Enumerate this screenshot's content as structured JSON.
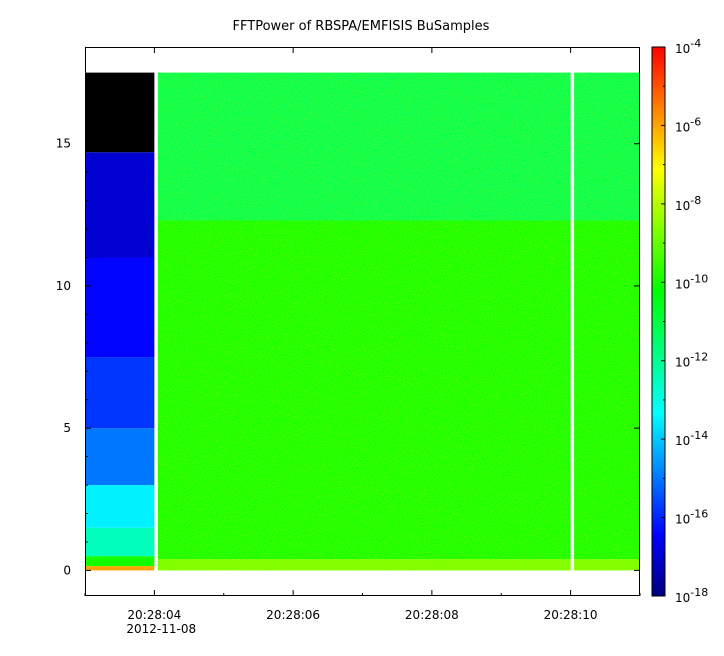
{
  "chart_data": {
    "type": "heatmap",
    "title": "FFTPower of RBSPA/EMFISIS  BuSamples",
    "xlabel": "",
    "ylabel": "",
    "x_ticks": [
      {
        "value": 4,
        "label": "20:28:04"
      },
      {
        "value": 6,
        "label": "20:28:06"
      },
      {
        "value": 8,
        "label": "20:28:08"
      },
      {
        "value": 10,
        "label": "20:28:10"
      }
    ],
    "x_first_tick_sublabel": "2012-11-08",
    "x_minor_ticks": [
      3,
      5,
      7,
      9,
      11
    ],
    "xlim": [
      3.0,
      11.0
    ],
    "y_ticks": [
      0,
      5,
      10,
      15
    ],
    "y_minor_ticks": [
      1,
      2,
      3,
      4,
      6,
      7,
      8,
      9,
      11,
      12,
      13,
      14,
      16,
      17
    ],
    "ylim": [
      -0.9,
      18.4
    ],
    "colorbar": {
      "scale": "log",
      "range": [
        1e-18,
        0.0001
      ],
      "tick_labels": [
        {
          "exp": -4,
          "base": "10",
          "sup": "-4"
        },
        {
          "exp": -6,
          "base": "10",
          "sup": "-6"
        },
        {
          "exp": -8,
          "base": "10",
          "sup": "-8"
        },
        {
          "exp": -10,
          "base": "10",
          "sup": "-10"
        },
        {
          "exp": -12,
          "base": "10",
          "sup": "-12"
        },
        {
          "exp": -14,
          "base": "10",
          "sup": "-14"
        },
        {
          "exp": -16,
          "base": "10",
          "sup": "-16"
        },
        {
          "exp": -18,
          "base": "10",
          "sup": "-18"
        }
      ],
      "colors": [
        "#00007f",
        "#0000ff",
        "#0080ff",
        "#00ffff",
        "#00ff80",
        "#00ff00",
        "#80ff00",
        "#ffff00",
        "#ff8000",
        "#ff0000"
      ]
    },
    "blocks": [
      {
        "x0": 3.0,
        "x1": 4.0,
        "bands": [
          {
            "y0": 0.0,
            "y1": 0.15,
            "log_power": -6.0
          },
          {
            "y0": 0.15,
            "y1": 0.5,
            "log_power": -10.0
          },
          {
            "y0": 0.5,
            "y1": 1.5,
            "log_power": -12.5
          },
          {
            "y0": 1.5,
            "y1": 3.0,
            "log_power": -13.5
          },
          {
            "y0": 3.0,
            "y1": 5.0,
            "log_power": -15.0
          },
          {
            "y0": 5.0,
            "y1": 7.5,
            "log_power": -15.8
          },
          {
            "y0": 7.5,
            "y1": 11.0,
            "log_power": -16.4
          },
          {
            "y0": 11.0,
            "y1": 14.7,
            "log_power": -17.0
          },
          {
            "y0": 14.7,
            "y1": 17.5,
            "log_power": null
          }
        ]
      },
      {
        "x0": 4.05,
        "x1": 10.0,
        "bands": [
          {
            "y0": 0.0,
            "y1": 0.4,
            "log_power": -8.8
          },
          {
            "y0": 0.4,
            "y1": 12.3,
            "log_power": -10.0
          },
          {
            "y0": 12.3,
            "y1": 17.5,
            "log_power": -11.2
          }
        ]
      },
      {
        "x0": 10.05,
        "x1": 11.0,
        "bands": [
          {
            "y0": 0.0,
            "y1": 0.4,
            "log_power": -8.8
          },
          {
            "y0": 0.4,
            "y1": 12.3,
            "log_power": -10.0
          },
          {
            "y0": 12.3,
            "y1": 17.5,
            "log_power": -11.2
          }
        ]
      }
    ]
  }
}
